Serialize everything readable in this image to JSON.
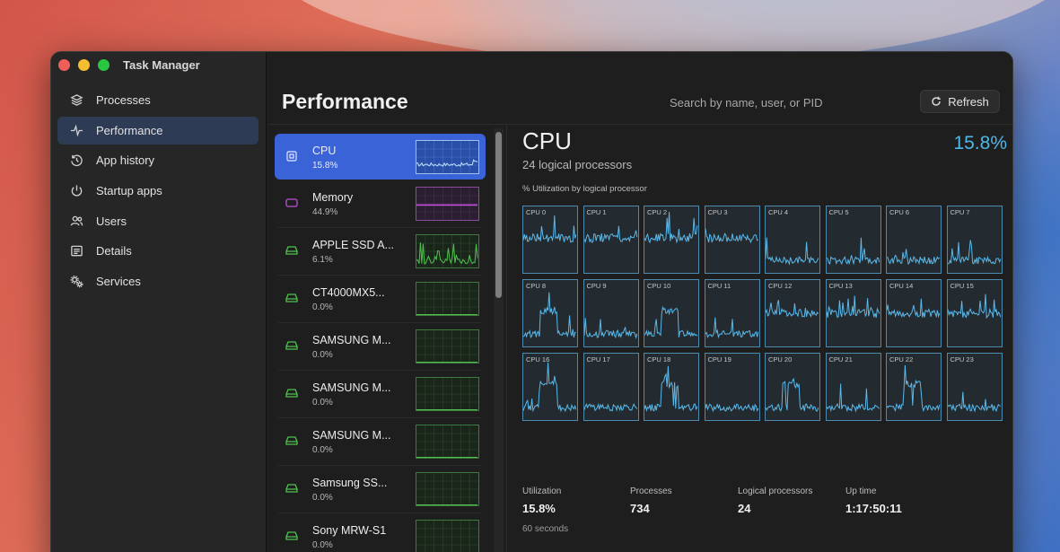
{
  "app": {
    "title": "Task Manager"
  },
  "sidebar": {
    "items": [
      {
        "label": "Processes",
        "icon": "layers-icon",
        "active": false
      },
      {
        "label": "Performance",
        "icon": "pulse-icon",
        "active": true
      },
      {
        "label": "App history",
        "icon": "history-icon",
        "active": false
      },
      {
        "label": "Startup apps",
        "icon": "power-icon",
        "active": false
      },
      {
        "label": "Users",
        "icon": "users-icon",
        "active": false
      },
      {
        "label": "Details",
        "icon": "details-icon",
        "active": false
      },
      {
        "label": "Services",
        "icon": "gears-icon",
        "active": false
      }
    ]
  },
  "header": {
    "title": "Performance",
    "search_placeholder": "Search by name, user, or PID",
    "refresh_label": "Refresh"
  },
  "devices": [
    {
      "name": "CPU",
      "value": "15.8%",
      "icon": "cpu-icon",
      "active": true,
      "color": "#5aa8e6"
    },
    {
      "name": "Memory",
      "value": "44.9%",
      "icon": "memory-icon",
      "active": false,
      "color": "#c04fd8"
    },
    {
      "name": "APPLE SSD A...",
      "value": "6.1%",
      "icon": "disk-icon",
      "active": false,
      "color": "#4fc24f"
    },
    {
      "name": "CT4000MX5...",
      "value": "0.0%",
      "icon": "disk-icon",
      "active": false,
      "color": "#4fc24f"
    },
    {
      "name": "SAMSUNG M...",
      "value": "0.0%",
      "icon": "disk-icon",
      "active": false,
      "color": "#4fc24f"
    },
    {
      "name": "SAMSUNG M...",
      "value": "0.0%",
      "icon": "disk-icon",
      "active": false,
      "color": "#4fc24f"
    },
    {
      "name": "SAMSUNG M...",
      "value": "0.0%",
      "icon": "disk-icon",
      "active": false,
      "color": "#4fc24f"
    },
    {
      "name": "Samsung SS...",
      "value": "0.0%",
      "icon": "disk-icon",
      "active": false,
      "color": "#4fc24f"
    },
    {
      "name": "Sony MRW-S1",
      "value": "0.0%",
      "icon": "disk-icon",
      "active": false,
      "color": "#4fc24f"
    }
  ],
  "cpu": {
    "title": "CPU",
    "subtitle": "24 logical processors",
    "percent": "15.8%",
    "grid_label": "% Utilization by logical processor",
    "cores": [
      "CPU 0",
      "CPU 1",
      "CPU 2",
      "CPU 3",
      "CPU 4",
      "CPU 5",
      "CPU 6",
      "CPU 7",
      "CPU 8",
      "CPU 9",
      "CPU 10",
      "CPU 11",
      "CPU 12",
      "CPU 13",
      "CPU 14",
      "CPU 15",
      "CPU 16",
      "CPU 17",
      "CPU 18",
      "CPU 19",
      "CPU 20",
      "CPU 21",
      "CPU 22",
      "CPU 23"
    ],
    "stats": [
      {
        "label": "Utilization",
        "value": "15.8%"
      },
      {
        "label": "Processes",
        "value": "734"
      },
      {
        "label": "Logical processors",
        "value": "24"
      },
      {
        "label": "Up time",
        "value": "1:17:50:11"
      }
    ],
    "window_label": "60 seconds"
  },
  "colors": {
    "accent": "#3a63d8",
    "cpu_line": "#5ab8ea",
    "disk_line": "#4fc24f",
    "memory_line": "#c04fd8"
  }
}
